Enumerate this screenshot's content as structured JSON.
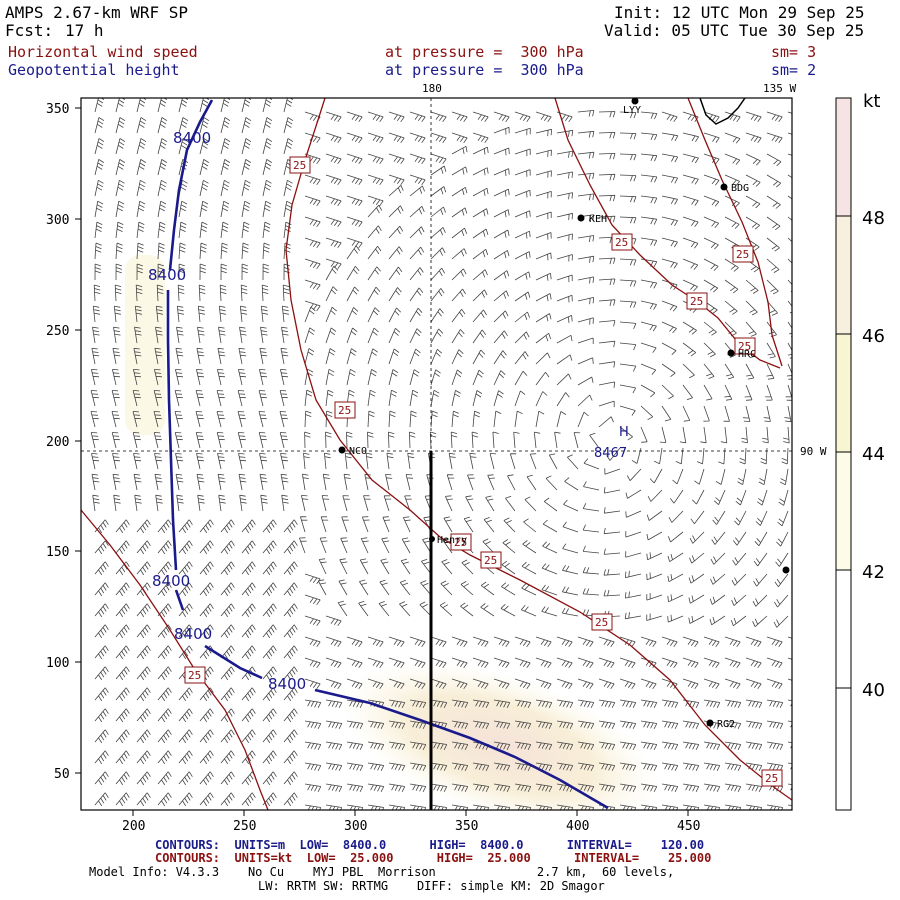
{
  "header": {
    "model": "AMPS 2.67-km WRF SP",
    "fcst_label": "Fcst:",
    "fcst_value": "17 h",
    "init": "Init: 12 UTC Mon 29 Sep 25",
    "valid": "Valid: 05 UTC Tue 30 Sep 25",
    "field1_name": "Horizontal wind speed",
    "field1_level": "at pressure =  300 hPa",
    "field1_sm": "sm= 3",
    "field2_name": "Geopotential height",
    "field2_level": "at pressure =  300 hPa",
    "field2_sm": "sm= 2"
  },
  "map": {
    "lon_labels": {
      "top": "180",
      "top_right": "135 W",
      "right": "90 W"
    },
    "x_ticks": [
      "200",
      "250",
      "300",
      "350",
      "400",
      "450"
    ],
    "y_ticks": [
      "50",
      "100",
      "150",
      "200",
      "250",
      "300",
      "350"
    ],
    "stations": [
      "LYY",
      "BDG",
      "KEH",
      "HRC",
      "NCO",
      "Henry",
      "RG2",
      ""
    ],
    "high_marker": "H",
    "high_value": "8467",
    "height_label": "8400",
    "speed_label": "25"
  },
  "colorbar": {
    "unit": "kt",
    "labels": [
      "48",
      "46",
      "44",
      "42",
      "40"
    ],
    "colors": [
      "#f6e4e4",
      "#f7f0de",
      "#f8f5d2",
      "#fdfce8",
      "#ffffff"
    ]
  },
  "footer": {
    "c1": "CONTOURS:  UNITS=m  LOW=  8400.0      HIGH=  8400.0      INTERVAL=    120.00",
    "c2": "CONTOURS:  UNITS=kt  LOW=  25.000      HIGH=  25.000      INTERVAL=    25.000",
    "m1": "Model Info: V4.3.3    No Cu    MYJ PBL  Morrison              2.7 km,  60 levels,",
    "m2": "LW: RRTM SW: RRTMG    DIFF: simple KM: 2D Smagor"
  },
  "colors": {
    "height": "#1a1a8c",
    "speed": "#8b1010"
  }
}
